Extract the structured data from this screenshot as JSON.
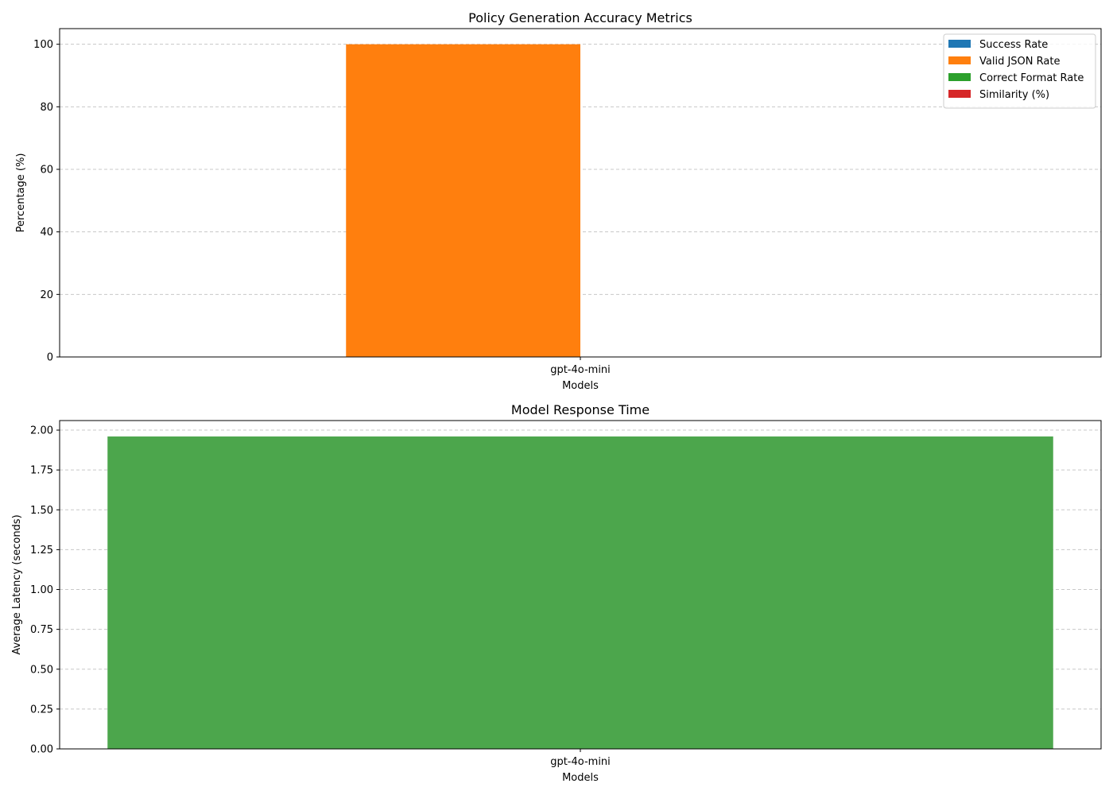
{
  "chart_data": [
    {
      "type": "bar",
      "title": "Policy Generation Accuracy Metrics",
      "xlabel": "Models",
      "ylabel": "Percentage (%)",
      "categories": [
        "gpt-4o-mini"
      ],
      "ylim": [
        0,
        105
      ],
      "yticks": [
        "0",
        "20",
        "40",
        "60",
        "80",
        "100"
      ],
      "grid": true,
      "legend_position": "top-right",
      "series": [
        {
          "name": "Success Rate",
          "values": [
            0
          ],
          "color": "#1f77b4"
        },
        {
          "name": "Valid JSON Rate",
          "values": [
            100
          ],
          "color": "#ff7f0e"
        },
        {
          "name": "Correct Format Rate",
          "values": [
            0
          ],
          "color": "#2ca02c"
        },
        {
          "name": "Similarity (%)",
          "values": [
            0
          ],
          "color": "#d62728"
        }
      ]
    },
    {
      "type": "bar",
      "title": "Model Response Time",
      "xlabel": "Models",
      "ylabel": "Average Latency (seconds)",
      "categories": [
        "gpt-4o-mini"
      ],
      "ylim": [
        0,
        2.06
      ],
      "yticks": [
        "0.00",
        "0.25",
        "0.50",
        "0.75",
        "1.00",
        "1.25",
        "1.50",
        "1.75",
        "2.00"
      ],
      "grid": true,
      "values": [
        1.96
      ],
      "color": "#4ca64c"
    }
  ]
}
